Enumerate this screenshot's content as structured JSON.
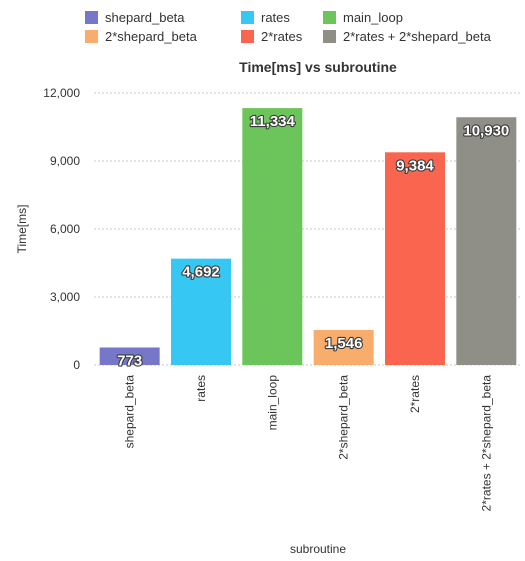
{
  "chart_data": {
    "type": "bar",
    "title": "Time[ms] vs subroutine",
    "xlabel": "subroutine",
    "ylabel": "Time[ms]",
    "ylim": [
      0,
      12000
    ],
    "yticks": [
      0,
      3000,
      6000,
      9000,
      12000
    ],
    "ytick_labels": [
      "0",
      "3,000",
      "6,000",
      "9,000",
      "12,000"
    ],
    "grid": true,
    "legend_position": "top",
    "categories": [
      "shepard_beta",
      "rates",
      "main_loop",
      "2*shepard_beta",
      "2*rates",
      "2*rates + 2*shepard_beta"
    ],
    "values": [
      773,
      4692,
      11334,
      1546,
      9384,
      10930
    ],
    "value_labels": [
      "773",
      "4,692",
      "11,334",
      "1,546",
      "9,384",
      "10,930"
    ],
    "colors": [
      "#7677c9",
      "#36c8f3",
      "#6cc55a",
      "#f9ad6c",
      "#fa6550",
      "#8f8f88"
    ],
    "legend": [
      "shepard_beta",
      "rates",
      "main_loop",
      "2*shepard_beta",
      "2*rates",
      "2*rates + 2*shepard_beta"
    ]
  }
}
